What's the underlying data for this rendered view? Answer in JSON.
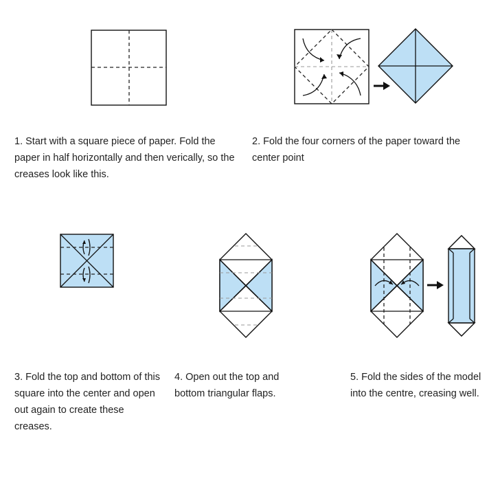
{
  "steps": [
    {
      "number": "1.",
      "text": "Start with a square piece of paper. Fold the paper in half horizontally and then verically, so the creases look like this."
    },
    {
      "number": "2.",
      "text": "Fold the four corners of the paper toward the center point"
    },
    {
      "number": "3.",
      "text": "Fold the top and bottom of this square into the center and open out again to create these creases."
    },
    {
      "number": "4.",
      "text": "Open out the top and bottom triangular flaps."
    },
    {
      "number": "5.",
      "text": "Fold the sides of the model into the centre, creasing well."
    }
  ],
  "colors": {
    "paper_fill": "#bddff5",
    "outline": "#111111",
    "crease": "#222222",
    "light_crease": "#999999"
  },
  "icons": [
    "fold-arrow-icon",
    "result-arrow-icon"
  ]
}
